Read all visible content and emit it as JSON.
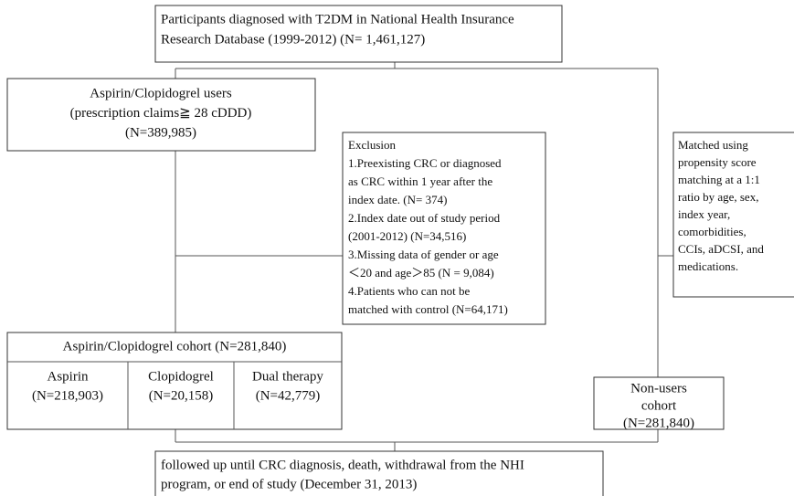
{
  "source": {
    "lines": [
      "Participants diagnosed with T2DM in National Health Insurance",
      "Research Database (1999-2012) (N= 1,461,127)"
    ]
  },
  "users": {
    "lines": [
      "Aspirin/Clopidogrel users",
      "(prescription claims≧ 28 cDDD)",
      "(N=389,985)"
    ]
  },
  "exclusion": {
    "lines": [
      "Exclusion",
      "1.Preexisting CRC or diagnosed",
      "as CRC within 1 year after the",
      "index date. (N= 374)",
      "2.Index date out of study period",
      "(2001-2012) (N=34,516)",
      "3.Missing data of gender or age",
      "＜20 and age＞85 (N = 9,084)",
      "4.Patients who can not be",
      "matched with control (N=64,171)"
    ]
  },
  "matching": {
    "lines": [
      "Matched using",
      "propensity score",
      "matching at a 1:1",
      "ratio by age, sex,",
      "index year,",
      "comorbidities,",
      "CCIs, aDCSI, and",
      "medications."
    ]
  },
  "cohort": {
    "title": "Aspirin/Clopidogrel cohort (N=281,840)",
    "groups": [
      {
        "name": "Aspirin",
        "n": "(N=218,903)"
      },
      {
        "name": "Clopidogrel",
        "n": "(N=20,158)"
      },
      {
        "name": "Dual therapy",
        "n": "(N=42,779)"
      }
    ]
  },
  "nonusers": {
    "lines": [
      "Non-users",
      "cohort",
      "(N=281,840)"
    ]
  },
  "followup": {
    "lines": [
      "followed up until CRC diagnosis, death, withdrawal from the NHI",
      "program, or end of study (December 31, 2013)"
    ]
  }
}
